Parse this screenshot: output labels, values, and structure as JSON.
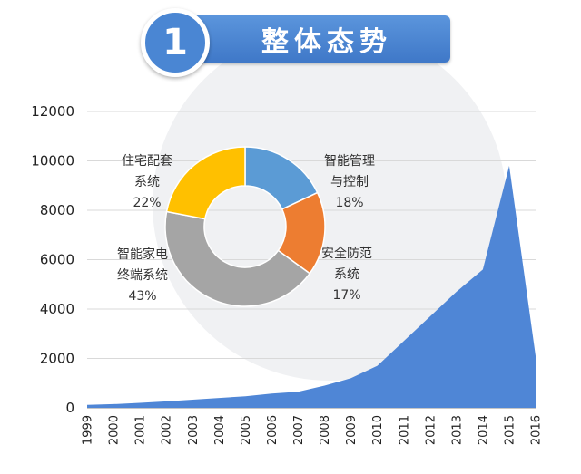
{
  "header": {
    "number": "1",
    "title": "整体态势"
  },
  "colors": {
    "area": "#4f86d6",
    "header": "#4a86d3"
  },
  "chart_data": [
    {
      "type": "area",
      "x": [
        "1999",
        "2000",
        "2001",
        "2002",
        "2003",
        "2004",
        "2005",
        "2006",
        "2007",
        "2008",
        "2009",
        "2010",
        "2011",
        "2012",
        "2013",
        "2014",
        "2015",
        "2016"
      ],
      "values": [
        120,
        150,
        200,
        260,
        330,
        400,
        470,
        580,
        650,
        900,
        1200,
        1700,
        2700,
        3700,
        4700,
        5600,
        9800,
        2100
      ],
      "ylim": [
        0,
        12000
      ],
      "yticks": [
        0,
        2000,
        4000,
        6000,
        8000,
        10000,
        12000
      ],
      "grid": true,
      "color": "#4f86d6"
    },
    {
      "type": "pie",
      "slices": [
        {
          "name": "智能管理与控制",
          "lines": [
            "智能管理",
            "与控制",
            "18%"
          ],
          "value": 18,
          "color": "#5b9bd5"
        },
        {
          "name": "安全防范系统",
          "lines": [
            "安全防范",
            "系统",
            "17%"
          ],
          "value": 17,
          "color": "#ed7d31"
        },
        {
          "name": "智能家电终端系统",
          "lines": [
            "智能家电",
            "终端系统",
            "43%"
          ],
          "value": 43,
          "color": "#a5a5a5"
        },
        {
          "name": "住宅配套系统",
          "lines": [
            "住宅配套",
            "系统",
            "22%"
          ],
          "value": 22,
          "color": "#ffc000"
        }
      ]
    }
  ]
}
